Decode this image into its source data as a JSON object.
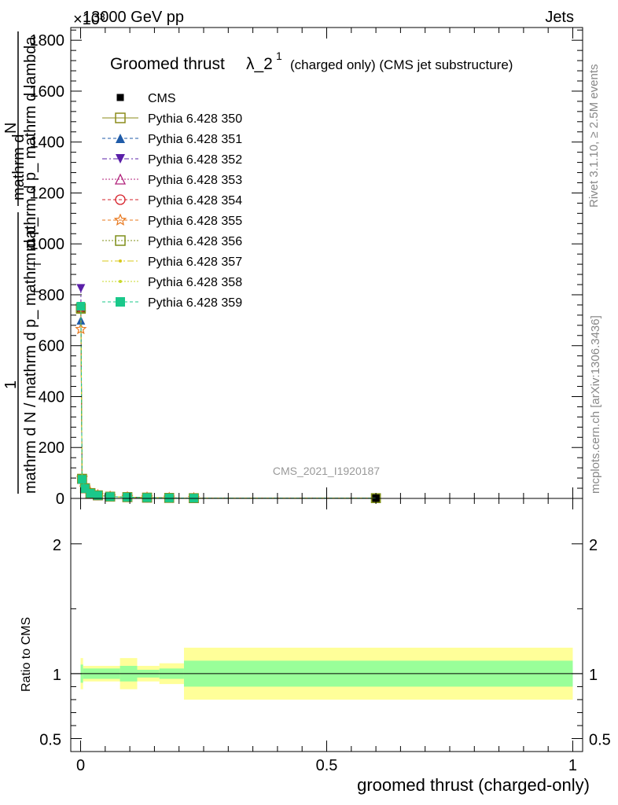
{
  "header": {
    "left": "13000 GeV pp",
    "right": "Jets",
    "exponent": "×10³"
  },
  "side": {
    "rivet": "Rivet 3.1.10, ≥ 2.5M events",
    "mcplots": "mcplots.cern.ch [arXiv:1306.3436]"
  },
  "watermark": "CMS_2021_I1920187",
  "title": {
    "main": "Groomed thrust",
    "symbol": "λ_2",
    "sup": "1",
    "extra": "(charged only) (CMS jet substructure)"
  },
  "ylabel_main": {
    "numerator_top": "mathrm d",
    "numerator_N": "N",
    "denom_top": "mathrm d p_ mathrm d lambda",
    "denom_sub": "T",
    "one": "1",
    "denom_bottom": "mathrm d N / mathrm d p_ mathrm d p_",
    "denom_bottom_sub": "T"
  },
  "ylabel_ratio": "Ratio to CMS",
  "xlabel": "groomed thrust (charged-only)",
  "colors": {
    "cms": "#000000",
    "p350": "#8b8b1a",
    "p351": "#1f5ba8",
    "p352": "#5a1fa8",
    "p353": "#b0207a",
    "p354": "#d6202a",
    "p355": "#e8781e",
    "p356": "#7f8f1a",
    "p357": "#d8c81a",
    "p358": "#c8d82a",
    "p359": "#1ac88a",
    "band_outer": "#ffff99",
    "band_inner": "#99ff99"
  },
  "chart_data": [
    {
      "type": "line",
      "panel": "main",
      "ylim": [
        0,
        1850
      ],
      "xlim": [
        -0.02,
        1.02
      ],
      "yticks": [
        0,
        200,
        400,
        600,
        800,
        1000,
        1200,
        1400,
        1600,
        1800
      ],
      "ytick_labels": [
        "0",
        "200",
        "400",
        "600",
        "800",
        "1000",
        "1200",
        "1400",
        "1600",
        "1800"
      ],
      "x": [
        0.0005,
        0.003,
        0.009,
        0.02,
        0.035,
        0.06,
        0.095,
        0.135,
        0.18,
        0.23,
        0.6
      ],
      "series": [
        {
          "name": "CMS",
          "values": [
            750,
            78,
            40,
            20,
            12,
            7,
            5,
            3,
            2,
            1,
            0
          ]
        },
        {
          "name": "Pythia 6.428 350",
          "values": [
            745,
            77,
            40,
            21,
            12,
            7,
            5,
            3,
            2,
            1,
            1
          ]
        },
        {
          "name": "Pythia 6.428 351",
          "values": [
            700,
            78,
            41,
            21,
            12,
            7,
            5,
            3,
            2,
            1,
            1
          ]
        },
        {
          "name": "Pythia 6.428 352",
          "values": [
            825,
            72,
            38,
            20,
            11,
            7,
            5,
            3,
            2,
            1,
            1
          ]
        },
        {
          "name": "Pythia 6.428 353",
          "values": [
            755,
            76,
            40,
            21,
            12,
            7,
            5,
            3,
            2,
            1,
            1
          ]
        },
        {
          "name": "Pythia 6.428 354",
          "values": [
            750,
            76,
            40,
            21,
            12,
            7,
            5,
            3,
            2,
            1,
            1
          ]
        },
        {
          "name": "Pythia 6.428 355",
          "values": [
            665,
            80,
            42,
            22,
            13,
            7,
            5,
            3,
            2,
            1,
            1
          ]
        },
        {
          "name": "Pythia 6.428 356",
          "values": [
            748,
            77,
            40,
            21,
            12,
            7,
            5,
            3,
            2,
            1,
            1
          ]
        },
        {
          "name": "Pythia 6.428 357",
          "values": [
            745,
            77,
            40,
            21,
            12,
            7,
            5,
            3,
            2,
            1,
            1
          ]
        },
        {
          "name": "Pythia 6.428 358",
          "values": [
            752,
            77,
            40,
            21,
            12,
            7,
            5,
            3,
            2,
            1,
            1
          ]
        },
        {
          "name": "Pythia 6.428 359",
          "values": [
            755,
            75,
            39,
            20,
            12,
            7,
            5,
            3,
            2,
            1,
            1
          ]
        }
      ]
    },
    {
      "type": "area",
      "panel": "ratio",
      "ylim": [
        0.4,
        2.35
      ],
      "xlim": [
        -0.02,
        1.02
      ],
      "yticks": [
        0.5,
        1,
        2
      ],
      "ytick_labels": [
        "0.5",
        "1",
        "2"
      ],
      "xticks": [
        0,
        0.5,
        1
      ],
      "xtick_labels": [
        "0",
        "0.5",
        "1"
      ],
      "bins": [
        {
          "x": [
            0.0,
            0.005
          ],
          "inner": [
            0.93,
            1.07
          ],
          "outer": [
            0.88,
            1.12
          ]
        },
        {
          "x": [
            0.005,
            0.08
          ],
          "inner": [
            0.96,
            1.04
          ],
          "outer": [
            0.94,
            1.06
          ]
        },
        {
          "x": [
            0.08,
            0.115
          ],
          "inner": [
            0.94,
            1.06
          ],
          "outer": [
            0.88,
            1.12
          ]
        },
        {
          "x": [
            0.115,
            0.16
          ],
          "inner": [
            0.97,
            1.03
          ],
          "outer": [
            0.94,
            1.06
          ]
        },
        {
          "x": [
            0.16,
            0.21
          ],
          "inner": [
            0.96,
            1.04
          ],
          "outer": [
            0.92,
            1.08
          ]
        },
        {
          "x": [
            0.21,
            1.0
          ],
          "inner": [
            0.9,
            1.1
          ],
          "outer": [
            0.8,
            1.2
          ]
        }
      ]
    }
  ]
}
